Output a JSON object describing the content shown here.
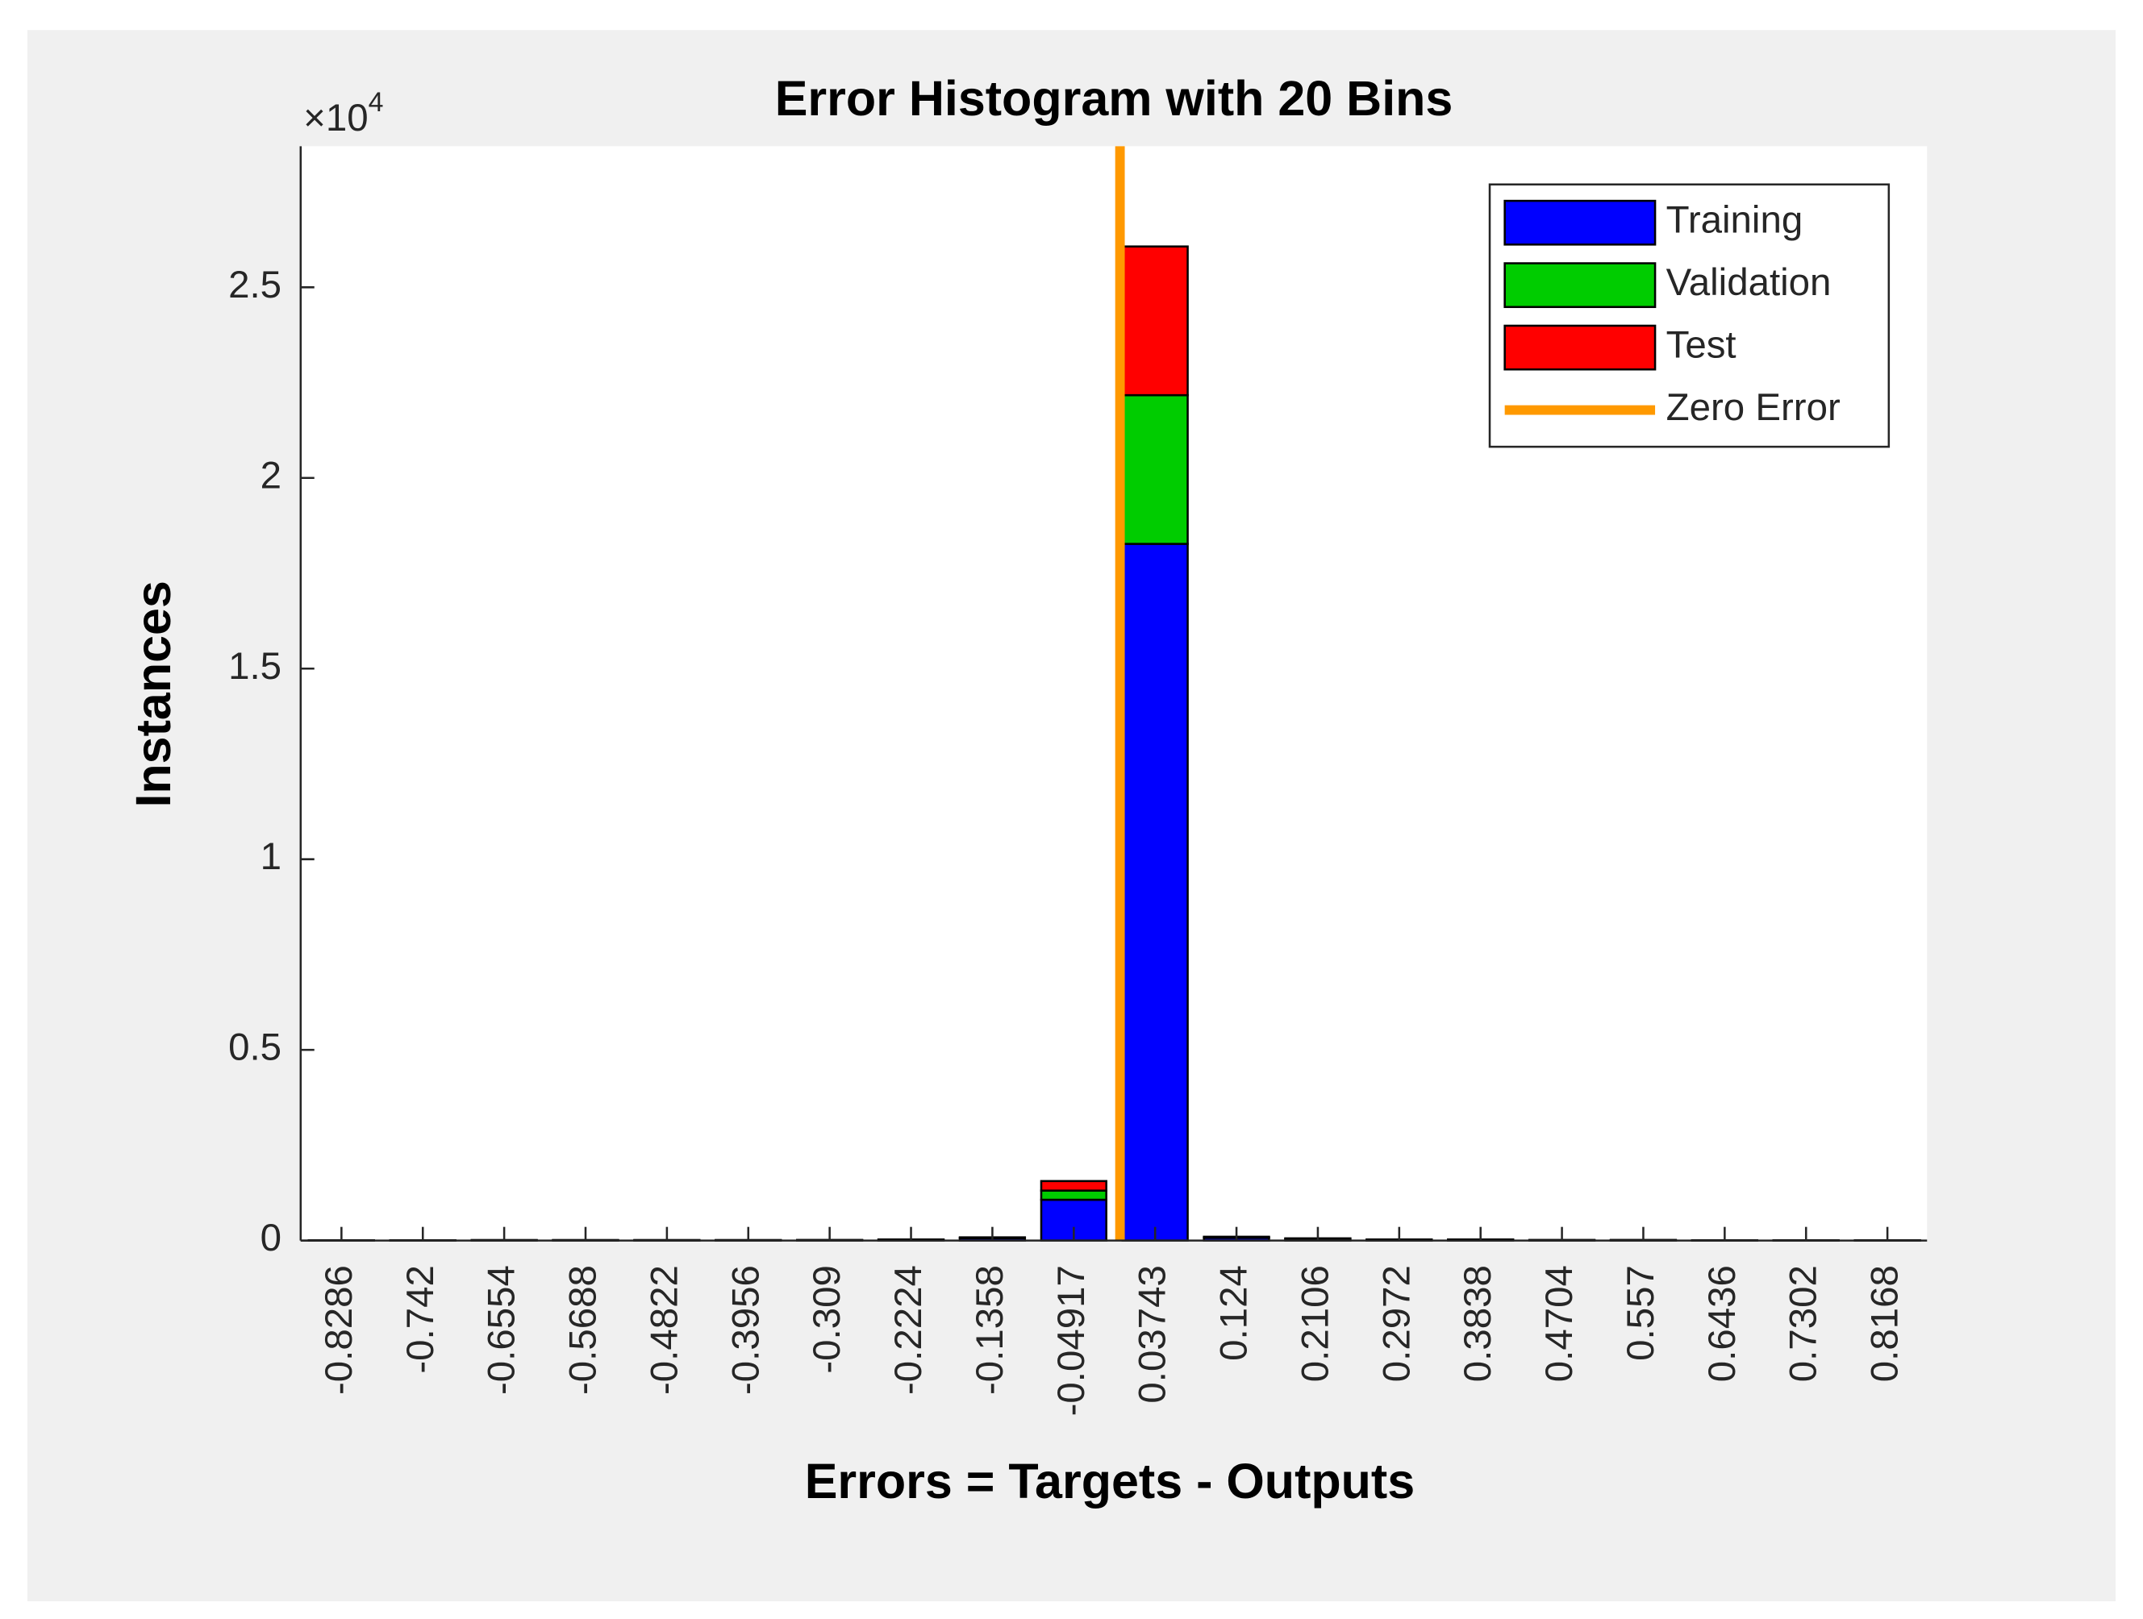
{
  "chart_data": {
    "type": "stacked_histogram",
    "title": "Error Histogram with 20 Bins",
    "x_label": "Errors = Targets - Outputs",
    "y_label": "Instances",
    "y_multiplier": {
      "base": "×10",
      "exponent": "4"
    },
    "x": [
      -0.8286,
      -0.742,
      -0.6554,
      -0.5688,
      -0.4822,
      -0.3956,
      -0.309,
      -0.2224,
      -0.1358,
      -0.04917,
      0.03743,
      0.124,
      0.2106,
      0.2972,
      0.3838,
      0.4704,
      0.557,
      0.6436,
      0.7302,
      0.8168
    ],
    "xlim": [
      -0.872,
      0.859
    ],
    "ylim": [
      0,
      2.87
    ],
    "yticks": [
      0,
      0.5,
      1,
      1.5,
      2,
      2.5
    ],
    "series": [
      {
        "name": "Training",
        "color": "#0000ff",
        "values": [
          0.0005,
          0.0005,
          0.0008,
          0.0008,
          0.0008,
          0.0008,
          0.001,
          0.002,
          0.006,
          0.107,
          1.827,
          0.007,
          0.004,
          0.002,
          0.002,
          0.001,
          0.001,
          0.0005,
          0.0005,
          0.0005
        ]
      },
      {
        "name": "Validation",
        "color": "#00cc00",
        "values": [
          0.0001,
          0.0001,
          0.0002,
          0.0002,
          0.0002,
          0.0002,
          0.0002,
          0.0004,
          0.0012,
          0.024,
          0.39,
          0.0015,
          0.0009,
          0.0004,
          0.0004,
          0.0002,
          0.0002,
          0.0001,
          0.0001,
          0.0001
        ]
      },
      {
        "name": "Test",
        "color": "#ff0000",
        "values": [
          0.0001,
          0.0001,
          0.0002,
          0.0002,
          0.0002,
          0.0002,
          0.0002,
          0.0004,
          0.0012,
          0.025,
          0.39,
          0.0015,
          0.0009,
          0.0004,
          0.0004,
          0.0002,
          0.0002,
          0.0001,
          0.0001,
          0.0001
        ]
      }
    ],
    "reference_line": {
      "name": "Zero Error",
      "color": "#ff9900",
      "x": 0
    },
    "legend": "top-right"
  }
}
